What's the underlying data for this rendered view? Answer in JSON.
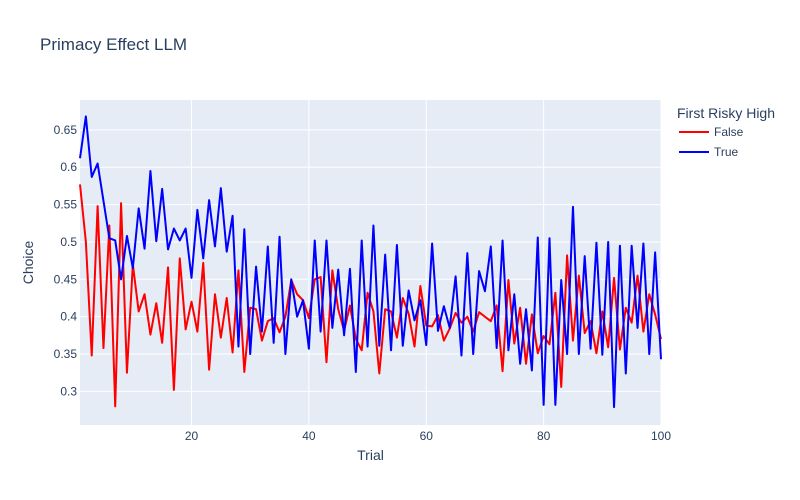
{
  "chart_data": {
    "type": "line",
    "title": "Primacy Effect LLM",
    "xlabel": "Trial",
    "ylabel": "Choice",
    "xlim": [
      1,
      100
    ],
    "ylim": [
      0.255,
      0.69
    ],
    "x_ticks": [
      20,
      40,
      60,
      80,
      100
    ],
    "y_ticks": [
      0.3,
      0.35,
      0.4,
      0.45,
      0.5,
      0.55,
      0.6,
      0.65
    ],
    "grid": true,
    "legend_title": "First Risky High",
    "legend_position": "top-right",
    "background_color": "#e5ecf6",
    "series": [
      {
        "name": "False",
        "color": "#ff0000",
        "values": [
          0.577,
          0.5,
          0.348,
          0.548,
          0.358,
          0.522,
          0.28,
          0.552,
          0.325,
          0.47,
          0.407,
          0.43,
          0.376,
          0.418,
          0.365,
          0.466,
          0.302,
          0.478,
          0.383,
          0.42,
          0.38,
          0.472,
          0.329,
          0.43,
          0.372,
          0.425,
          0.352,
          0.462,
          0.326,
          0.412,
          0.41,
          0.368,
          0.394,
          0.398,
          0.379,
          0.4,
          0.449,
          0.43,
          0.422,
          0.398,
          0.45,
          0.453,
          0.339,
          0.462,
          0.41,
          0.381,
          0.415,
          0.37,
          0.355,
          0.432,
          0.407,
          0.324,
          0.41,
          0.407,
          0.372,
          0.425,
          0.404,
          0.36,
          0.441,
          0.388,
          0.387,
          0.402,
          0.368,
          0.384,
          0.405,
          0.392,
          0.4,
          0.38,
          0.406,
          0.4,
          0.394,
          0.415,
          0.327,
          0.449,
          0.364,
          0.412,
          0.337,
          0.403,
          0.351,
          0.374,
          0.363,
          0.432,
          0.306,
          0.482,
          0.368,
          0.455,
          0.378,
          0.394,
          0.351,
          0.407,
          0.359,
          0.452,
          0.356,
          0.412,
          0.392,
          0.455,
          0.38,
          0.43,
          0.403,
          0.37
        ]
      },
      {
        "name": "True",
        "color": "#0000ff",
        "values": [
          0.612,
          0.668,
          0.587,
          0.605,
          0.555,
          0.505,
          0.502,
          0.45,
          0.508,
          0.465,
          0.545,
          0.491,
          0.595,
          0.501,
          0.571,
          0.49,
          0.518,
          0.502,
          0.518,
          0.452,
          0.543,
          0.478,
          0.556,
          0.494,
          0.572,
          0.487,
          0.535,
          0.36,
          0.517,
          0.35,
          0.467,
          0.38,
          0.494,
          0.365,
          0.507,
          0.35,
          0.45,
          0.4,
          0.422,
          0.357,
          0.502,
          0.38,
          0.502,
          0.385,
          0.463,
          0.375,
          0.464,
          0.326,
          0.502,
          0.36,
          0.522,
          0.361,
          0.483,
          0.355,
          0.496,
          0.361,
          0.435,
          0.395,
          0.422,
          0.362,
          0.498,
          0.381,
          0.414,
          0.385,
          0.454,
          0.348,
          0.485,
          0.35,
          0.461,
          0.434,
          0.494,
          0.358,
          0.502,
          0.355,
          0.43,
          0.337,
          0.41,
          0.328,
          0.506,
          0.282,
          0.505,
          0.282,
          0.449,
          0.35,
          0.547,
          0.35,
          0.481,
          0.357,
          0.499,
          0.349,
          0.5,
          0.279,
          0.495,
          0.324,
          0.495,
          0.385,
          0.498,
          0.35,
          0.486,
          0.343
        ]
      }
    ]
  }
}
